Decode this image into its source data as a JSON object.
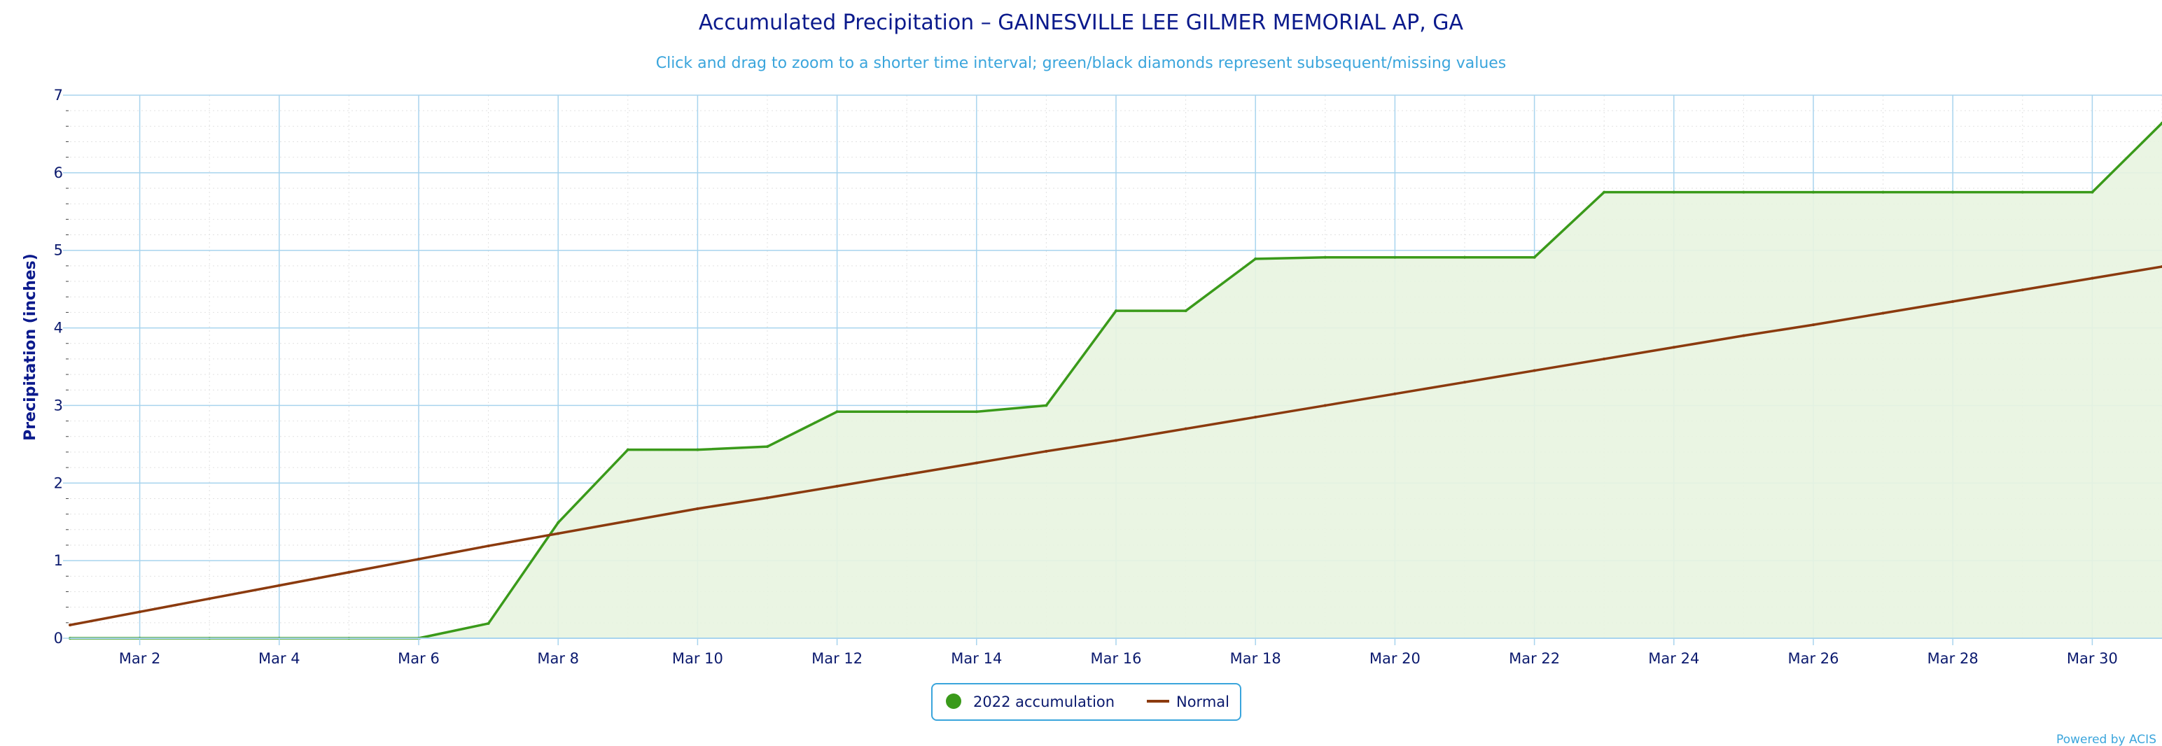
{
  "chart_data": {
    "type": "line",
    "title": "Accumulated Precipitation – GAINESVILLE LEE GILMER MEMORIAL AP, GA",
    "subtitle": "Click and drag to zoom to a shorter time interval; green/black diamonds represent subsequent/missing values",
    "ylabel": "Precipitation (inches)",
    "xlabel": "",
    "ylim": [
      0,
      7
    ],
    "yticks": [
      0,
      1,
      2,
      3,
      4,
      5,
      6,
      7
    ],
    "x": [
      "Mar 1",
      "Mar 2",
      "Mar 3",
      "Mar 4",
      "Mar 5",
      "Mar 6",
      "Mar 7",
      "Mar 8",
      "Mar 9",
      "Mar 10",
      "Mar 11",
      "Mar 12",
      "Mar 13",
      "Mar 14",
      "Mar 15",
      "Mar 16",
      "Mar 17",
      "Mar 18",
      "Mar 19",
      "Mar 20",
      "Mar 21",
      "Mar 22",
      "Mar 23",
      "Mar 24",
      "Mar 25",
      "Mar 26",
      "Mar 27",
      "Mar 28",
      "Mar 29",
      "Mar 30",
      "Mar 31"
    ],
    "xtick_labels": [
      "Mar 2",
      "Mar 4",
      "Mar 6",
      "Mar 8",
      "Mar 10",
      "Mar 12",
      "Mar 14",
      "Mar 16",
      "Mar 18",
      "Mar 20",
      "Mar 22",
      "Mar 24",
      "Mar 26",
      "Mar 28",
      "Mar 30"
    ],
    "series": [
      {
        "name": "2022 accumulation",
        "color": "#3a9a1a",
        "fill": "#e8f4e0",
        "values": [
          0,
          0,
          0,
          0,
          0,
          0,
          0.19,
          1.49,
          2.43,
          2.43,
          2.47,
          2.92,
          2.92,
          2.92,
          3.0,
          4.22,
          4.22,
          4.89,
          4.91,
          4.91,
          4.91,
          4.91,
          5.75,
          5.75,
          5.75,
          5.75,
          5.75,
          5.75,
          5.75,
          5.75,
          6.64
        ]
      },
      {
        "name": "Normal",
        "color": "#8b3a0e",
        "values": [
          0.17,
          0.34,
          0.51,
          0.68,
          0.85,
          1.02,
          1.19,
          1.35,
          1.51,
          1.67,
          1.81,
          1.96,
          2.11,
          2.26,
          2.41,
          2.55,
          2.7,
          2.85,
          3.0,
          3.15,
          3.3,
          3.45,
          3.6,
          3.75,
          3.9,
          4.04,
          4.19,
          4.34,
          4.49,
          4.64,
          4.79
        ]
      }
    ],
    "grid": true,
    "legend_position": "bottom-center"
  },
  "credit": "Powered by ACIS",
  "colors": {
    "grid": "#a8d4ee",
    "minor_grid": "#e2e2e2",
    "axis_text": "#0b1a6e",
    "legend_border": "#3aa5dc"
  }
}
